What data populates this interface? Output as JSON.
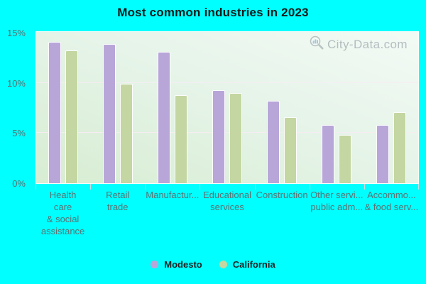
{
  "title": "Most common industries in 2023",
  "watermark": {
    "label": "City-Data.com"
  },
  "colors": {
    "page_background": "#00ffff",
    "modesto_bar": "#b8a6d9",
    "california_bar": "#c4d6a1",
    "plot_gradient_top": "#f3faf5",
    "plot_gradient_bottom": "#d7edd2",
    "gridline": "#f7ecf3",
    "y_axis_text": "#5d6f6f",
    "x_axis_text": "#5c7272",
    "legend_text": "#222222"
  },
  "y_axis": {
    "tick_labels": [
      "15%",
      "10%",
      "5%",
      "0%"
    ],
    "tick_values": [
      15,
      10,
      5,
      0
    ]
  },
  "x_axis": {
    "labels_lines": [
      [
        "Health",
        "care",
        "& social",
        "assistance"
      ],
      [
        "Retail",
        "trade"
      ],
      [
        "Manufactur..."
      ],
      [
        "Educational",
        "services"
      ],
      [
        "Construction"
      ],
      [
        "Other servi...",
        "public adm..."
      ],
      [
        "Accommo...",
        "& food serv..."
      ]
    ]
  },
  "legend": {
    "items": [
      {
        "label": "Modesto",
        "color": "#b8a6d9"
      },
      {
        "label": "California",
        "color": "#c4d6a1"
      }
    ]
  },
  "chart_data": {
    "type": "bar",
    "title": "Most common industries in 2023",
    "categories": [
      "Health care & social assistance",
      "Retail trade",
      "Manufactur...",
      "Educational services",
      "Construction",
      "Other servi... public adm...",
      "Accommo... & food serv..."
    ],
    "series": [
      {
        "name": "Modesto",
        "color": "#b8a6d9",
        "values": [
          14.1,
          13.9,
          13.1,
          9.3,
          8.2,
          5.8,
          5.8
        ]
      },
      {
        "name": "California",
        "color": "#c4d6a1",
        "values": [
          13.2,
          9.9,
          8.8,
          9.0,
          6.6,
          4.8,
          7.1
        ]
      }
    ],
    "unit": "%",
    "xlabel": "",
    "ylabel": "",
    "ylim": [
      0,
      15
    ],
    "gridline_values": [
      5,
      10
    ],
    "grid": true,
    "legend_position": "bottom-center",
    "plot_background": "light-green-gradient",
    "page_background": "cyan"
  }
}
